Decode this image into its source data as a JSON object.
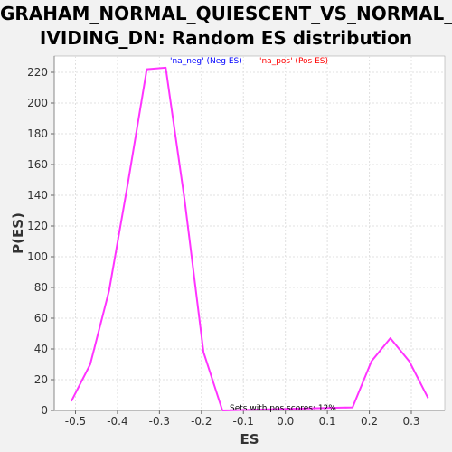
{
  "chart_data": {
    "type": "line",
    "title_line1": "GRAHAM_NORMAL_QUIESCENT_VS_NORMAL_D",
    "title_line2": "IVIDING_DN: Random ES distribution",
    "xlabel": "ES",
    "ylabel": "P(ES)",
    "xlim": [
      -0.55,
      0.38
    ],
    "ylim": [
      0,
      230
    ],
    "xticks": [
      -0.5,
      -0.4,
      -0.3,
      -0.2,
      -0.1,
      0.0,
      0.1,
      0.2,
      0.3
    ],
    "xtick_labels": [
      "-0.5",
      "-0.4",
      "-0.3",
      "-0.2",
      "-0.1",
      "0.0",
      "0.1",
      "0.2",
      "0.3"
    ],
    "yticks": [
      0,
      20,
      40,
      60,
      80,
      100,
      120,
      140,
      160,
      180,
      200,
      220
    ],
    "grid": true,
    "series": [
      {
        "name": "'na_neg' (Neg ES)",
        "color": "#ff33ff",
        "x": [
          -0.51,
          -0.465,
          -0.42,
          -0.375,
          -0.33,
          -0.285,
          -0.24,
          -0.195,
          -0.15
        ],
        "y": [
          6,
          30,
          78,
          148,
          222,
          223,
          137,
          38,
          0
        ]
      },
      {
        "name": "'na_pos' (Pos ES)",
        "color": "#ff33ff",
        "x": [
          -0.15,
          0.16,
          0.205,
          0.25,
          0.295,
          0.34
        ],
        "y": [
          0,
          2,
          32,
          47,
          32,
          8
        ]
      }
    ],
    "legend": [
      {
        "label": "'na_neg' (Neg ES)",
        "color": "#0000ff"
      },
      {
        "label": "'na_pos' (Pos ES)",
        "color": "#ff0000"
      }
    ],
    "annotation": "Sets with pos scores: 12%"
  }
}
